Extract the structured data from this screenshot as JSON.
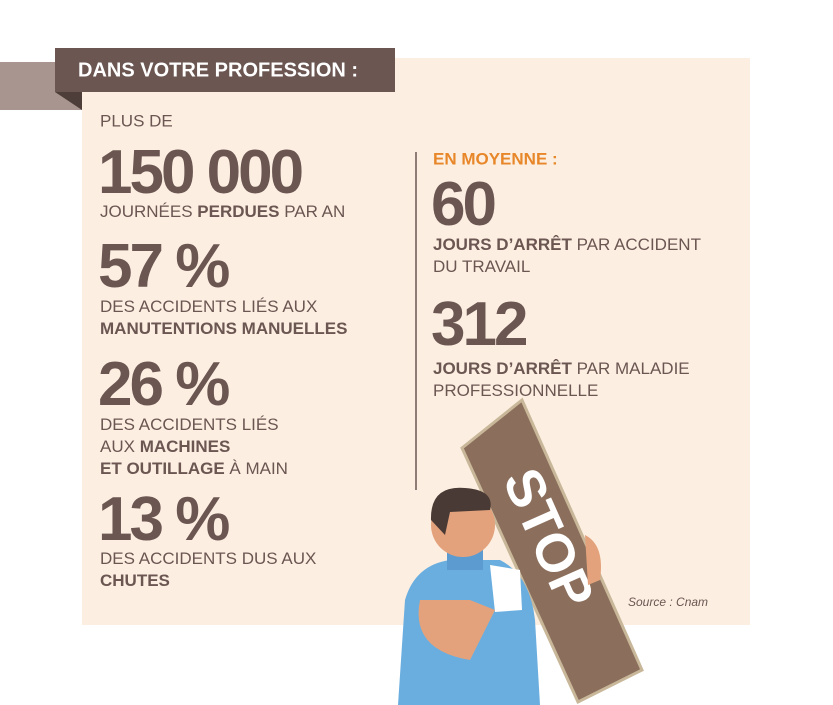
{
  "header": {
    "title": "DANS VOTRE PROFESSION :"
  },
  "left_stats": [
    {
      "prefix": "PLUS DE",
      "figure": "150 000",
      "lines": [
        [
          {
            "text": "JOURNÉES ",
            "bold": false
          },
          {
            "text": "PERDUES",
            "bold": true
          },
          {
            "text": " PAR AN",
            "bold": false
          }
        ]
      ]
    },
    {
      "figure": "57 %",
      "lines": [
        [
          {
            "text": "DES ACCIDENTS LIÉS AUX",
            "bold": false
          }
        ],
        [
          {
            "text": "MANUTENTIONS MANUELLES",
            "bold": true
          }
        ]
      ]
    },
    {
      "figure": "26 %",
      "lines": [
        [
          {
            "text": "DES ACCIDENTS LIÉS",
            "bold": false
          }
        ],
        [
          {
            "text": "AUX ",
            "bold": false
          },
          {
            "text": "MACHINES",
            "bold": true
          }
        ],
        [
          {
            "text": "ET OUTILLAGE",
            "bold": true
          },
          {
            "text": " À MAIN",
            "bold": false
          }
        ]
      ]
    },
    {
      "figure": "13 %",
      "lines": [
        [
          {
            "text": "DES ACCIDENTS DUS AUX",
            "bold": false
          }
        ],
        [
          {
            "text": "CHUTES",
            "bold": true
          }
        ]
      ]
    }
  ],
  "right_label": "EN MOYENNE :",
  "right_stats": [
    {
      "figure": "60",
      "lines": [
        [
          {
            "text": "JOURS D’ARRÊT",
            "bold": true
          },
          {
            "text": " PAR ACCIDENT",
            "bold": false
          }
        ],
        [
          {
            "text": "DU TRAVAIL",
            "bold": false
          }
        ]
      ]
    },
    {
      "figure": "312",
      "lines": [
        [
          {
            "text": "JOURS D’ARRÊT",
            "bold": true
          },
          {
            "text": " PAR MALADIE",
            "bold": false
          }
        ],
        [
          {
            "text": "PROFESSIONNELLE",
            "bold": false
          }
        ]
      ]
    }
  ],
  "illustration": {
    "sign_text": "STOP"
  },
  "source": "Source : Cnam"
}
